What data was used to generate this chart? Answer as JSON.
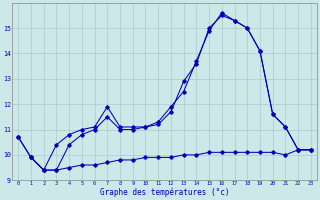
{
  "xlabel": "Graphe des températures (°c)",
  "background_color": "#cce8e8",
  "line_color": "#0000bb",
  "grid_color": "#aacccc",
  "line1_x": [
    0,
    1,
    2,
    3,
    4,
    5,
    6,
    7,
    8,
    9,
    10,
    11,
    12,
    13,
    14,
    15,
    16,
    17,
    18,
    19,
    20,
    21,
    22,
    23
  ],
  "line1_y": [
    10.7,
    9.9,
    9.4,
    9.4,
    9.5,
    9.6,
    9.6,
    9.7,
    9.8,
    9.8,
    9.9,
    9.9,
    9.9,
    10.0,
    10.0,
    10.1,
    10.1,
    10.1,
    10.1,
    10.1,
    10.1,
    10.0,
    10.2,
    10.2
  ],
  "line2_x": [
    0,
    1,
    2,
    3,
    4,
    5,
    6,
    7,
    8,
    9,
    10,
    11,
    12,
    13,
    14,
    15,
    16,
    17,
    18,
    19,
    20,
    21,
    22,
    23
  ],
  "line2_y": [
    10.7,
    9.9,
    9.4,
    10.4,
    10.8,
    11.0,
    11.1,
    11.9,
    11.1,
    11.1,
    11.1,
    11.3,
    11.9,
    12.5,
    13.7,
    14.9,
    15.6,
    15.3,
    15.0,
    14.1,
    11.6,
    11.1,
    10.2,
    10.2
  ],
  "line3_x": [
    1,
    2,
    3,
    4,
    5,
    6,
    7,
    8,
    9,
    10,
    11,
    12,
    13,
    14,
    15,
    16,
    17,
    18,
    19,
    20,
    21,
    22,
    23
  ],
  "line3_y": [
    9.9,
    9.4,
    9.4,
    10.4,
    10.8,
    11.0,
    11.5,
    11.0,
    11.0,
    11.1,
    11.2,
    11.7,
    12.9,
    13.6,
    15.0,
    15.5,
    15.3,
    15.0,
    14.1,
    11.6,
    11.1,
    10.2,
    10.2
  ],
  "ylim": [
    9,
    16
  ],
  "xlim": [
    -0.5,
    23.5
  ],
  "yticks": [
    9,
    10,
    11,
    12,
    13,
    14,
    15
  ],
  "xticks": [
    0,
    1,
    2,
    3,
    4,
    5,
    6,
    7,
    8,
    9,
    10,
    11,
    12,
    13,
    14,
    15,
    16,
    17,
    18,
    19,
    20,
    21,
    22,
    23
  ]
}
